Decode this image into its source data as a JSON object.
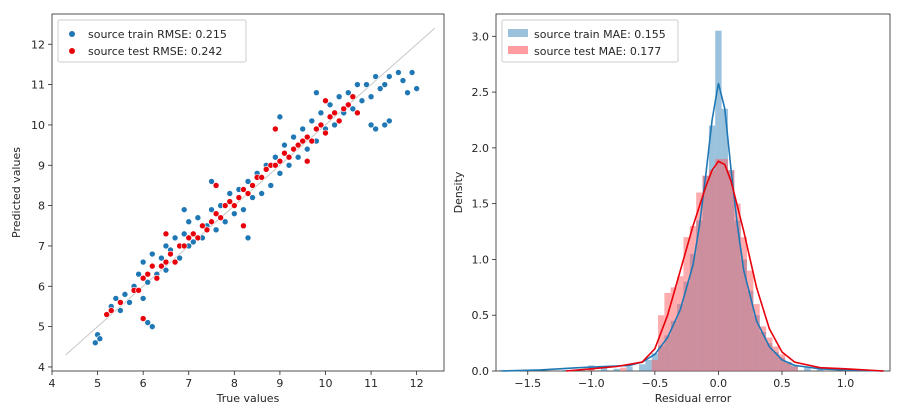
{
  "chart_data": [
    {
      "type": "scatter",
      "xlabel": "True values",
      "ylabel": "Predicted values",
      "xlim": [
        4.0,
        12.6
      ],
      "ylim": [
        3.9,
        12.75
      ],
      "xticks": [
        4,
        5,
        6,
        7,
        8,
        9,
        10,
        11,
        12
      ],
      "yticks": [
        4,
        5,
        6,
        7,
        8,
        9,
        10,
        11,
        12
      ],
      "grid": false,
      "legend_placement": "top-left",
      "identity_line": {
        "x": [
          4.3,
          12.4
        ],
        "y": [
          4.3,
          12.4
        ],
        "color": "#c8c8c8"
      },
      "series": [
        {
          "name": "source train RMSE: 0.215",
          "color": "#1f77b4",
          "points": [
            [
              4.95,
              4.6
            ],
            [
              5.0,
              4.8
            ],
            [
              5.05,
              4.7
            ],
            [
              5.3,
              5.5
            ],
            [
              5.4,
              5.7
            ],
            [
              5.5,
              5.4
            ],
            [
              5.6,
              5.8
            ],
            [
              5.7,
              5.6
            ],
            [
              5.8,
              6.0
            ],
            [
              5.9,
              6.3
            ],
            [
              6.0,
              5.7
            ],
            [
              6.0,
              6.6
            ],
            [
              6.1,
              6.1
            ],
            [
              6.2,
              6.8
            ],
            [
              6.2,
              6.5
            ],
            [
              6.3,
              6.3
            ],
            [
              6.4,
              6.7
            ],
            [
              6.5,
              7.0
            ],
            [
              6.5,
              6.4
            ],
            [
              6.6,
              6.9
            ],
            [
              6.7,
              7.2
            ],
            [
              6.8,
              6.7
            ],
            [
              6.9,
              7.3
            ],
            [
              7.0,
              7.0
            ],
            [
              7.0,
              7.6
            ],
            [
              7.1,
              7.1
            ],
            [
              7.2,
              7.7
            ],
            [
              7.3,
              7.2
            ],
            [
              7.4,
              7.5
            ],
            [
              7.5,
              7.9
            ],
            [
              7.6,
              7.4
            ],
            [
              7.7,
              8.0
            ],
            [
              7.8,
              7.6
            ],
            [
              7.9,
              8.3
            ],
            [
              8.0,
              7.8
            ],
            [
              8.1,
              8.4
            ],
            [
              8.2,
              7.9
            ],
            [
              8.3,
              8.6
            ],
            [
              8.4,
              8.2
            ],
            [
              8.5,
              8.8
            ],
            [
              8.6,
              8.3
            ],
            [
              8.7,
              9.0
            ],
            [
              8.8,
              8.5
            ],
            [
              8.9,
              9.2
            ],
            [
              9.0,
              8.8
            ],
            [
              9.1,
              9.5
            ],
            [
              9.2,
              9.0
            ],
            [
              9.3,
              9.7
            ],
            [
              9.4,
              9.2
            ],
            [
              9.5,
              9.9
            ],
            [
              9.6,
              9.4
            ],
            [
              9.7,
              10.1
            ],
            [
              9.8,
              9.6
            ],
            [
              9.9,
              10.3
            ],
            [
              10.0,
              9.9
            ],
            [
              10.1,
              10.5
            ],
            [
              10.2,
              10.0
            ],
            [
              10.3,
              10.7
            ],
            [
              10.4,
              10.3
            ],
            [
              10.5,
              10.8
            ],
            [
              10.6,
              10.4
            ],
            [
              10.7,
              11.0
            ],
            [
              10.8,
              10.6
            ],
            [
              10.9,
              11.0
            ],
            [
              11.0,
              10.7
            ],
            [
              11.1,
              11.2
            ],
            [
              11.2,
              10.9
            ],
            [
              11.3,
              11.0
            ],
            [
              11.4,
              11.2
            ],
            [
              11.6,
              11.3
            ],
            [
              11.7,
              11.1
            ],
            [
              11.8,
              10.8
            ],
            [
              11.9,
              11.3
            ],
            [
              12.0,
              10.9
            ],
            [
              11.0,
              10.0
            ],
            [
              11.1,
              9.9
            ],
            [
              11.3,
              10.0
            ],
            [
              11.4,
              10.1
            ],
            [
              9.0,
              10.2
            ],
            [
              9.8,
              10.8
            ],
            [
              6.1,
              5.1
            ],
            [
              6.2,
              5.0
            ],
            [
              6.0,
              5.2
            ],
            [
              6.9,
              7.9
            ],
            [
              7.5,
              8.6
            ],
            [
              8.3,
              7.2
            ]
          ]
        },
        {
          "name": "source test RMSE: 0.242",
          "color": "#e8000b",
          "points": [
            [
              5.2,
              5.3
            ],
            [
              5.3,
              5.4
            ],
            [
              5.5,
              5.6
            ],
            [
              5.8,
              5.9
            ],
            [
              5.9,
              5.9
            ],
            [
              6.0,
              6.2
            ],
            [
              6.1,
              6.3
            ],
            [
              6.2,
              6.5
            ],
            [
              6.3,
              6.2
            ],
            [
              6.4,
              6.5
            ],
            [
              6.5,
              6.6
            ],
            [
              6.6,
              6.8
            ],
            [
              6.7,
              6.6
            ],
            [
              6.8,
              7.0
            ],
            [
              6.9,
              7.0
            ],
            [
              7.0,
              7.2
            ],
            [
              7.1,
              7.3
            ],
            [
              7.2,
              7.2
            ],
            [
              7.3,
              7.5
            ],
            [
              7.4,
              7.4
            ],
            [
              7.5,
              7.6
            ],
            [
              7.6,
              7.8
            ],
            [
              7.7,
              7.7
            ],
            [
              7.8,
              8.0
            ],
            [
              7.9,
              8.1
            ],
            [
              8.0,
              8.0
            ],
            [
              8.1,
              8.2
            ],
            [
              8.2,
              8.4
            ],
            [
              8.3,
              8.3
            ],
            [
              8.4,
              8.5
            ],
            [
              8.5,
              8.7
            ],
            [
              8.6,
              8.7
            ],
            [
              8.7,
              8.9
            ],
            [
              8.8,
              9.0
            ],
            [
              8.9,
              9.0
            ],
            [
              9.0,
              9.1
            ],
            [
              9.1,
              9.3
            ],
            [
              9.2,
              9.2
            ],
            [
              9.3,
              9.4
            ],
            [
              9.4,
              9.5
            ],
            [
              9.5,
              9.6
            ],
            [
              9.6,
              9.7
            ],
            [
              9.7,
              9.6
            ],
            [
              9.8,
              9.9
            ],
            [
              9.9,
              10.0
            ],
            [
              10.0,
              9.8
            ],
            [
              10.1,
              10.2
            ],
            [
              10.2,
              10.3
            ],
            [
              10.3,
              10.1
            ],
            [
              10.4,
              10.4
            ],
            [
              10.5,
              10.5
            ],
            [
              10.6,
              10.7
            ],
            [
              10.7,
              10.3
            ],
            [
              6.0,
              5.2
            ],
            [
              6.5,
              7.3
            ],
            [
              7.6,
              8.5
            ],
            [
              8.9,
              9.9
            ],
            [
              9.6,
              9.1
            ],
            [
              10.0,
              10.6
            ],
            [
              8.2,
              7.5
            ]
          ]
        }
      ]
    },
    {
      "type": "histogram",
      "xlabel": "Residual error",
      "ylabel": "Density",
      "xlim": [
        -1.75,
        1.35
      ],
      "ylim": [
        0,
        3.2
      ],
      "xticks": [
        -1.5,
        -1.0,
        -0.5,
        0.0,
        0.5,
        1.0
      ],
      "xtick_labels": [
        "−1.5",
        "−1.0",
        "−0.5",
        "0.0",
        "0.5",
        "1.0"
      ],
      "yticks": [
        0.0,
        0.5,
        1.0,
        1.5,
        2.0,
        2.5,
        3.0
      ],
      "grid": false,
      "legend_placement": "top-left",
      "bin_width": 0.05,
      "series": [
        {
          "name": "source train MAE: 0.155",
          "color": "#1f77b4",
          "bins": [
            [
              -1.7,
              0.01
            ],
            [
              -1.5,
              0.01
            ],
            [
              -1.2,
              0.01
            ],
            [
              -1.0,
              0.05
            ],
            [
              -0.9,
              0.03
            ],
            [
              -0.8,
              0.02
            ],
            [
              -0.7,
              0.04
            ],
            [
              -0.6,
              0.06
            ],
            [
              -0.55,
              0.1
            ],
            [
              -0.5,
              0.16
            ],
            [
              -0.45,
              0.23
            ],
            [
              -0.4,
              0.32
            ],
            [
              -0.35,
              0.45
            ],
            [
              -0.3,
              0.6
            ],
            [
              -0.25,
              0.8
            ],
            [
              -0.2,
              1.05
            ],
            [
              -0.15,
              1.35
            ],
            [
              -0.1,
              1.75
            ],
            [
              -0.05,
              2.2
            ],
            [
              0.0,
              3.05
            ],
            [
              0.05,
              2.35
            ],
            [
              0.1,
              1.8
            ],
            [
              0.15,
              1.35
            ],
            [
              0.2,
              1.0
            ],
            [
              0.25,
              0.72
            ],
            [
              0.3,
              0.5
            ],
            [
              0.35,
              0.35
            ],
            [
              0.4,
              0.25
            ],
            [
              0.45,
              0.17
            ],
            [
              0.5,
              0.12
            ],
            [
              0.55,
              0.08
            ],
            [
              0.6,
              0.05
            ],
            [
              0.7,
              0.03
            ],
            [
              0.8,
              0.02
            ],
            [
              1.0,
              0.02
            ],
            [
              1.1,
              0.01
            ]
          ],
          "kde": [
            [
              -1.7,
              0.0
            ],
            [
              -1.4,
              0.01
            ],
            [
              -1.1,
              0.03
            ],
            [
              -0.9,
              0.04
            ],
            [
              -0.7,
              0.05
            ],
            [
              -0.6,
              0.08
            ],
            [
              -0.5,
              0.15
            ],
            [
              -0.4,
              0.3
            ],
            [
              -0.3,
              0.55
            ],
            [
              -0.2,
              0.95
            ],
            [
              -0.15,
              1.3
            ],
            [
              -0.1,
              1.75
            ],
            [
              -0.05,
              2.25
            ],
            [
              0.0,
              2.58
            ],
            [
              0.05,
              2.35
            ],
            [
              0.1,
              1.8
            ],
            [
              0.15,
              1.3
            ],
            [
              0.2,
              0.9
            ],
            [
              0.3,
              0.45
            ],
            [
              0.4,
              0.22
            ],
            [
              0.5,
              0.1
            ],
            [
              0.6,
              0.05
            ],
            [
              0.8,
              0.02
            ],
            [
              1.0,
              0.01
            ],
            [
              1.3,
              0.0
            ]
          ]
        },
        {
          "name": "source test MAE: 0.177",
          "color": "#ff5a5f",
          "bins": [
            [
              -1.0,
              0.02
            ],
            [
              -0.75,
              0.03
            ],
            [
              -0.5,
              0.1
            ],
            [
              -0.45,
              0.5
            ],
            [
              -0.4,
              0.7
            ],
            [
              -0.35,
              0.75
            ],
            [
              -0.3,
              0.85
            ],
            [
              -0.25,
              1.2
            ],
            [
              -0.2,
              1.3
            ],
            [
              -0.15,
              1.6
            ],
            [
              -0.1,
              1.75
            ],
            [
              -0.05,
              1.8
            ],
            [
              0.0,
              1.9
            ],
            [
              0.05,
              1.9
            ],
            [
              0.1,
              1.8
            ],
            [
              0.15,
              1.5
            ],
            [
              0.2,
              1.2
            ],
            [
              0.25,
              0.9
            ],
            [
              0.3,
              0.6
            ],
            [
              0.35,
              0.4
            ],
            [
              0.4,
              0.3
            ],
            [
              0.45,
              0.22
            ],
            [
              0.5,
              0.15
            ],
            [
              0.55,
              0.08
            ],
            [
              0.6,
              0.04
            ],
            [
              1.0,
              0.02
            ]
          ],
          "kde": [
            [
              -1.2,
              0.0
            ],
            [
              -1.0,
              0.02
            ],
            [
              -0.8,
              0.04
            ],
            [
              -0.6,
              0.08
            ],
            [
              -0.5,
              0.2
            ],
            [
              -0.4,
              0.5
            ],
            [
              -0.3,
              0.9
            ],
            [
              -0.2,
              1.3
            ],
            [
              -0.1,
              1.65
            ],
            [
              -0.05,
              1.8
            ],
            [
              0.0,
              1.88
            ],
            [
              0.05,
              1.85
            ],
            [
              0.1,
              1.7
            ],
            [
              0.2,
              1.25
            ],
            [
              0.3,
              0.75
            ],
            [
              0.4,
              0.38
            ],
            [
              0.5,
              0.17
            ],
            [
              0.6,
              0.08
            ],
            [
              0.8,
              0.03
            ],
            [
              1.0,
              0.02
            ],
            [
              1.3,
              0.0
            ]
          ]
        }
      ]
    }
  ]
}
